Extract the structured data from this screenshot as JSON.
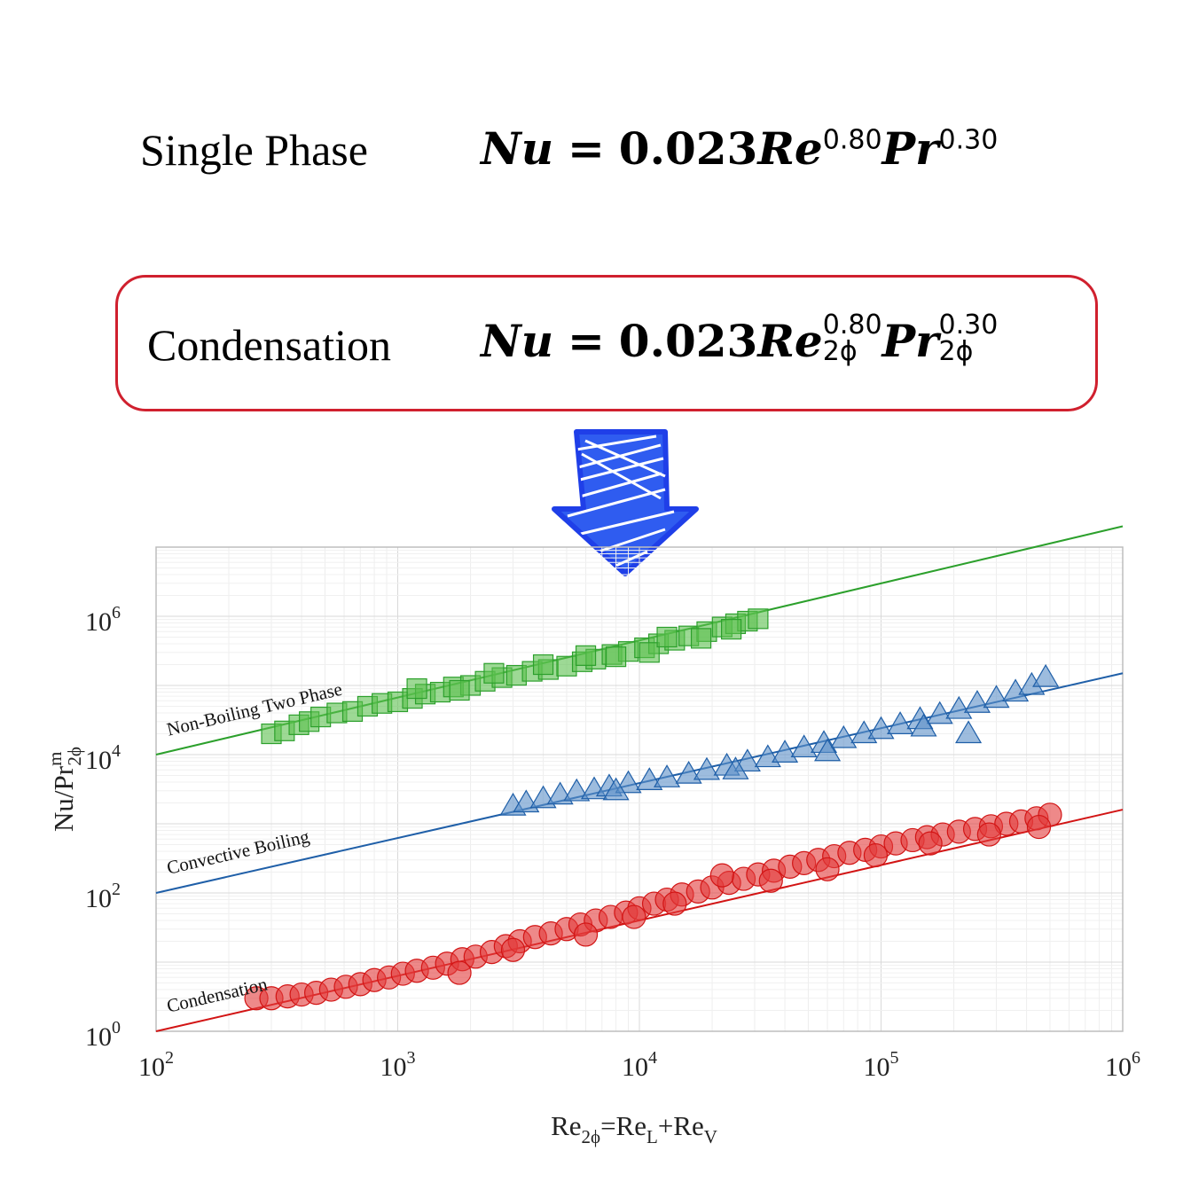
{
  "equations": {
    "single": {
      "label": "Single Phase",
      "lhs": "Nu",
      "eq": "=",
      "coef": "0.023",
      "re": "Re",
      "re_exp": "0.80",
      "pr": "Pr",
      "pr_exp": "0.30"
    },
    "condensation": {
      "label": "Condensation",
      "lhs": "Nu",
      "eq": "=",
      "coef": "0.023",
      "re": "Re",
      "re_exp": "0.80",
      "re_sub": "2ϕ",
      "pr": "Pr",
      "pr_exp": "0.30",
      "pr_sub": "2ϕ"
    }
  },
  "arrow_color": "#1f3fe8",
  "box_color": "#d0202e",
  "chart_data": {
    "type": "scatter",
    "x_scale": "log",
    "y_scale": "log",
    "xlim": [
      100,
      1000000
    ],
    "ylim": [
      1,
      10000000
    ],
    "x_ticks": [
      {
        "value": 100,
        "base": "10",
        "exp": "2"
      },
      {
        "value": 1000,
        "base": "10",
        "exp": "3"
      },
      {
        "value": 10000,
        "base": "10",
        "exp": "4"
      },
      {
        "value": 100000,
        "base": "10",
        "exp": "5"
      },
      {
        "value": 1000000,
        "base": "10",
        "exp": "6"
      }
    ],
    "y_ticks": [
      {
        "value": 1,
        "base": "10",
        "exp": "0"
      },
      {
        "value": 100,
        "base": "10",
        "exp": "2"
      },
      {
        "value": 10000,
        "base": "10",
        "exp": "4"
      },
      {
        "value": 1000000,
        "base": "10",
        "exp": "6"
      }
    ],
    "xlabel": {
      "a": "Re",
      "a_sub": "2ϕ",
      "b": "=Re",
      "b_sub": "L",
      "c": "+Re",
      "c_sub": "V"
    },
    "ylabel": {
      "a": "Nu/Pr",
      "a_sup": "m",
      "a_sub": "2ϕ"
    },
    "grid": true,
    "series": [
      {
        "name": "Non-Boiling Two Phase",
        "marker": "square",
        "color": "#2ca02c",
        "fill": "#5cbf4f",
        "fit_line": {
          "x": [
            100,
            1000000
          ],
          "y": [
            10000,
            20000000
          ]
        },
        "points": [
          [
            300,
            20000
          ],
          [
            340,
            22000
          ],
          [
            390,
            27000
          ],
          [
            430,
            30000
          ],
          [
            480,
            35000
          ],
          [
            560,
            40000
          ],
          [
            650,
            42000
          ],
          [
            750,
            50000
          ],
          [
            860,
            55000
          ],
          [
            1000,
            58000
          ],
          [
            1150,
            65000
          ],
          [
            1300,
            75000
          ],
          [
            1500,
            80000
          ],
          [
            1700,
            95000
          ],
          [
            2000,
            100000
          ],
          [
            2300,
            115000
          ],
          [
            2700,
            130000
          ],
          [
            3100,
            140000
          ],
          [
            3600,
            160000
          ],
          [
            4200,
            170000
          ],
          [
            5000,
            190000
          ],
          [
            5800,
            220000
          ],
          [
            6600,
            240000
          ],
          [
            7700,
            280000
          ],
          [
            9000,
            310000
          ],
          [
            10500,
            350000
          ],
          [
            12000,
            400000
          ],
          [
            14000,
            450000
          ],
          [
            16000,
            520000
          ],
          [
            19000,
            600000
          ],
          [
            22000,
            700000
          ],
          [
            25000,
            780000
          ],
          [
            28000,
            850000
          ],
          [
            31000,
            920000
          ],
          [
            1200,
            90000
          ],
          [
            1800,
            85000
          ],
          [
            2500,
            150000
          ],
          [
            4000,
            200000
          ],
          [
            6000,
            270000
          ],
          [
            8000,
            260000
          ],
          [
            11000,
            300000
          ],
          [
            13000,
            500000
          ],
          [
            18000,
            480000
          ],
          [
            24000,
            650000
          ]
        ]
      },
      {
        "name": "Convective Boiling",
        "marker": "triangle",
        "color": "#1f5fa8",
        "fill": "#5b8fc8",
        "fit_line": {
          "x": [
            100,
            1000000
          ],
          "y": [
            100,
            150000
          ]
        },
        "points": [
          [
            3000,
            1800
          ],
          [
            3400,
            2000
          ],
          [
            4000,
            2300
          ],
          [
            4700,
            2600
          ],
          [
            5500,
            2900
          ],
          [
            6500,
            3100
          ],
          [
            7500,
            3400
          ],
          [
            9000,
            3800
          ],
          [
            11000,
            4200
          ],
          [
            13000,
            4600
          ],
          [
            16000,
            5200
          ],
          [
            19000,
            5900
          ],
          [
            23000,
            6800
          ],
          [
            28000,
            7800
          ],
          [
            34000,
            9000
          ],
          [
            40000,
            10500
          ],
          [
            48000,
            12500
          ],
          [
            58000,
            14500
          ],
          [
            70000,
            17000
          ],
          [
            85000,
            20000
          ],
          [
            100000,
            23000
          ],
          [
            120000,
            27000
          ],
          [
            145000,
            32000
          ],
          [
            175000,
            38000
          ],
          [
            210000,
            45000
          ],
          [
            250000,
            55000
          ],
          [
            300000,
            65000
          ],
          [
            360000,
            80000
          ],
          [
            420000,
            100000
          ],
          [
            480000,
            130000
          ],
          [
            230000,
            20000
          ],
          [
            150000,
            25000
          ],
          [
            60000,
            11000
          ],
          [
            25000,
            6000
          ],
          [
            8000,
            3000
          ]
        ]
      },
      {
        "name": "Condensation",
        "marker": "circle",
        "color": "#d21414",
        "fill": "#e23a3a",
        "fit_line": {
          "x": [
            100,
            1000000
          ],
          "y": [
            1,
            1600
          ]
        },
        "points": [
          [
            260,
            3
          ],
          [
            300,
            3
          ],
          [
            350,
            3.2
          ],
          [
            400,
            3.4
          ],
          [
            460,
            3.6
          ],
          [
            530,
            4
          ],
          [
            610,
            4.4
          ],
          [
            700,
            4.8
          ],
          [
            800,
            5.5
          ],
          [
            920,
            6
          ],
          [
            1050,
            6.8
          ],
          [
            1200,
            7.5
          ],
          [
            1400,
            8.3
          ],
          [
            1600,
            9.5
          ],
          [
            1850,
            11
          ],
          [
            2100,
            12
          ],
          [
            2450,
            14
          ],
          [
            2800,
            17
          ],
          [
            3200,
            20
          ],
          [
            3700,
            23
          ],
          [
            4300,
            26
          ],
          [
            5000,
            30
          ],
          [
            5700,
            35
          ],
          [
            6600,
            40
          ],
          [
            7600,
            45
          ],
          [
            8800,
            52
          ],
          [
            10000,
            60
          ],
          [
            11500,
            70
          ],
          [
            13000,
            80
          ],
          [
            15000,
            95
          ],
          [
            17500,
            105
          ],
          [
            20000,
            120
          ],
          [
            23500,
            140
          ],
          [
            27000,
            160
          ],
          [
            31000,
            185
          ],
          [
            36000,
            210
          ],
          [
            42000,
            240
          ],
          [
            48000,
            270
          ],
          [
            55000,
            300
          ],
          [
            64000,
            340
          ],
          [
            74000,
            380
          ],
          [
            86000,
            420
          ],
          [
            100000,
            470
          ],
          [
            115000,
            520
          ],
          [
            135000,
            580
          ],
          [
            155000,
            640
          ],
          [
            180000,
            700
          ],
          [
            210000,
            770
          ],
          [
            245000,
            840
          ],
          [
            285000,
            920
          ],
          [
            330000,
            1000
          ],
          [
            380000,
            1080
          ],
          [
            440000,
            1200
          ],
          [
            500000,
            1350
          ],
          [
            1800,
            7
          ],
          [
            3000,
            15
          ],
          [
            6000,
            25
          ],
          [
            9500,
            45
          ],
          [
            14000,
            70
          ],
          [
            22000,
            180
          ],
          [
            35000,
            150
          ],
          [
            60000,
            220
          ],
          [
            95000,
            350
          ],
          [
            160000,
            520
          ],
          [
            280000,
            700
          ],
          [
            450000,
            900
          ]
        ]
      }
    ],
    "annotations": [
      {
        "text": "Non-Boiling Two Phase",
        "series": 0
      },
      {
        "text": "Convective Boiling",
        "series": 1
      },
      {
        "text": "Condensation",
        "series": 2
      }
    ]
  }
}
